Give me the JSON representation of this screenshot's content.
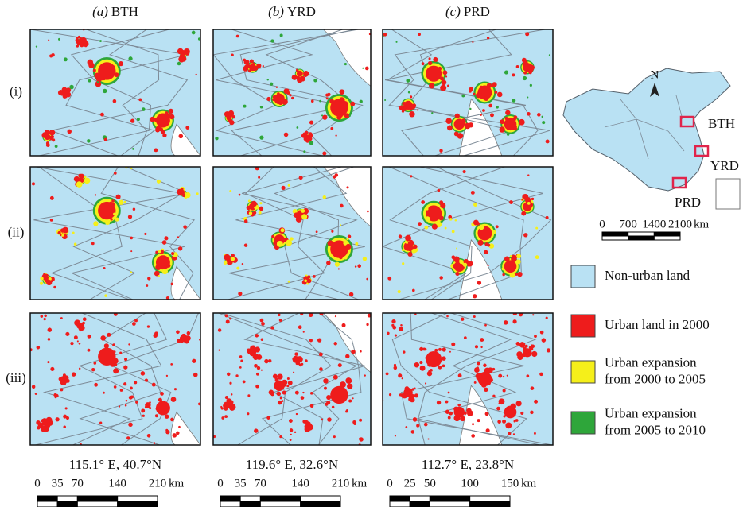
{
  "columns": [
    {
      "letter": "(a)",
      "name": "BTH",
      "coordinates": "115.1° E, 40.7°N",
      "scale": {
        "ticks": [
          0,
          35,
          70,
          140,
          210
        ],
        "unit": "km"
      }
    },
    {
      "letter": "(b)",
      "name": "YRD",
      "coordinates": "119.6° E, 32.6°N",
      "scale": {
        "ticks": [
          0,
          35,
          70,
          140,
          210
        ],
        "unit": "km"
      }
    },
    {
      "letter": "(c)",
      "name": "PRD",
      "coordinates": "112.7° E, 23.8°N",
      "scale": {
        "ticks": [
          0,
          25,
          50,
          100,
          150
        ],
        "unit": "km"
      }
    }
  ],
  "rows": [
    "(i)",
    "(ii)",
    "(iii)"
  ],
  "inset": {
    "north": "N",
    "regions": [
      "BTH",
      "YRD",
      "PRD"
    ],
    "scale": {
      "ticks": [
        0,
        700,
        1400,
        2100
      ],
      "unit": "km"
    }
  },
  "legend": [
    {
      "lines": [
        "Non-urban land"
      ],
      "color": "#b9e1f3"
    },
    {
      "lines": [
        "Urban land in 2000"
      ],
      "color": "#ee1c1c"
    },
    {
      "lines": [
        "Urban expansion",
        "from 2000 to 2005"
      ],
      "color": "#f5ef1a"
    },
    {
      "lines": [
        "Urban expansion",
        "from 2005 to 2010"
      ],
      "color": "#2ea63a"
    }
  ]
}
